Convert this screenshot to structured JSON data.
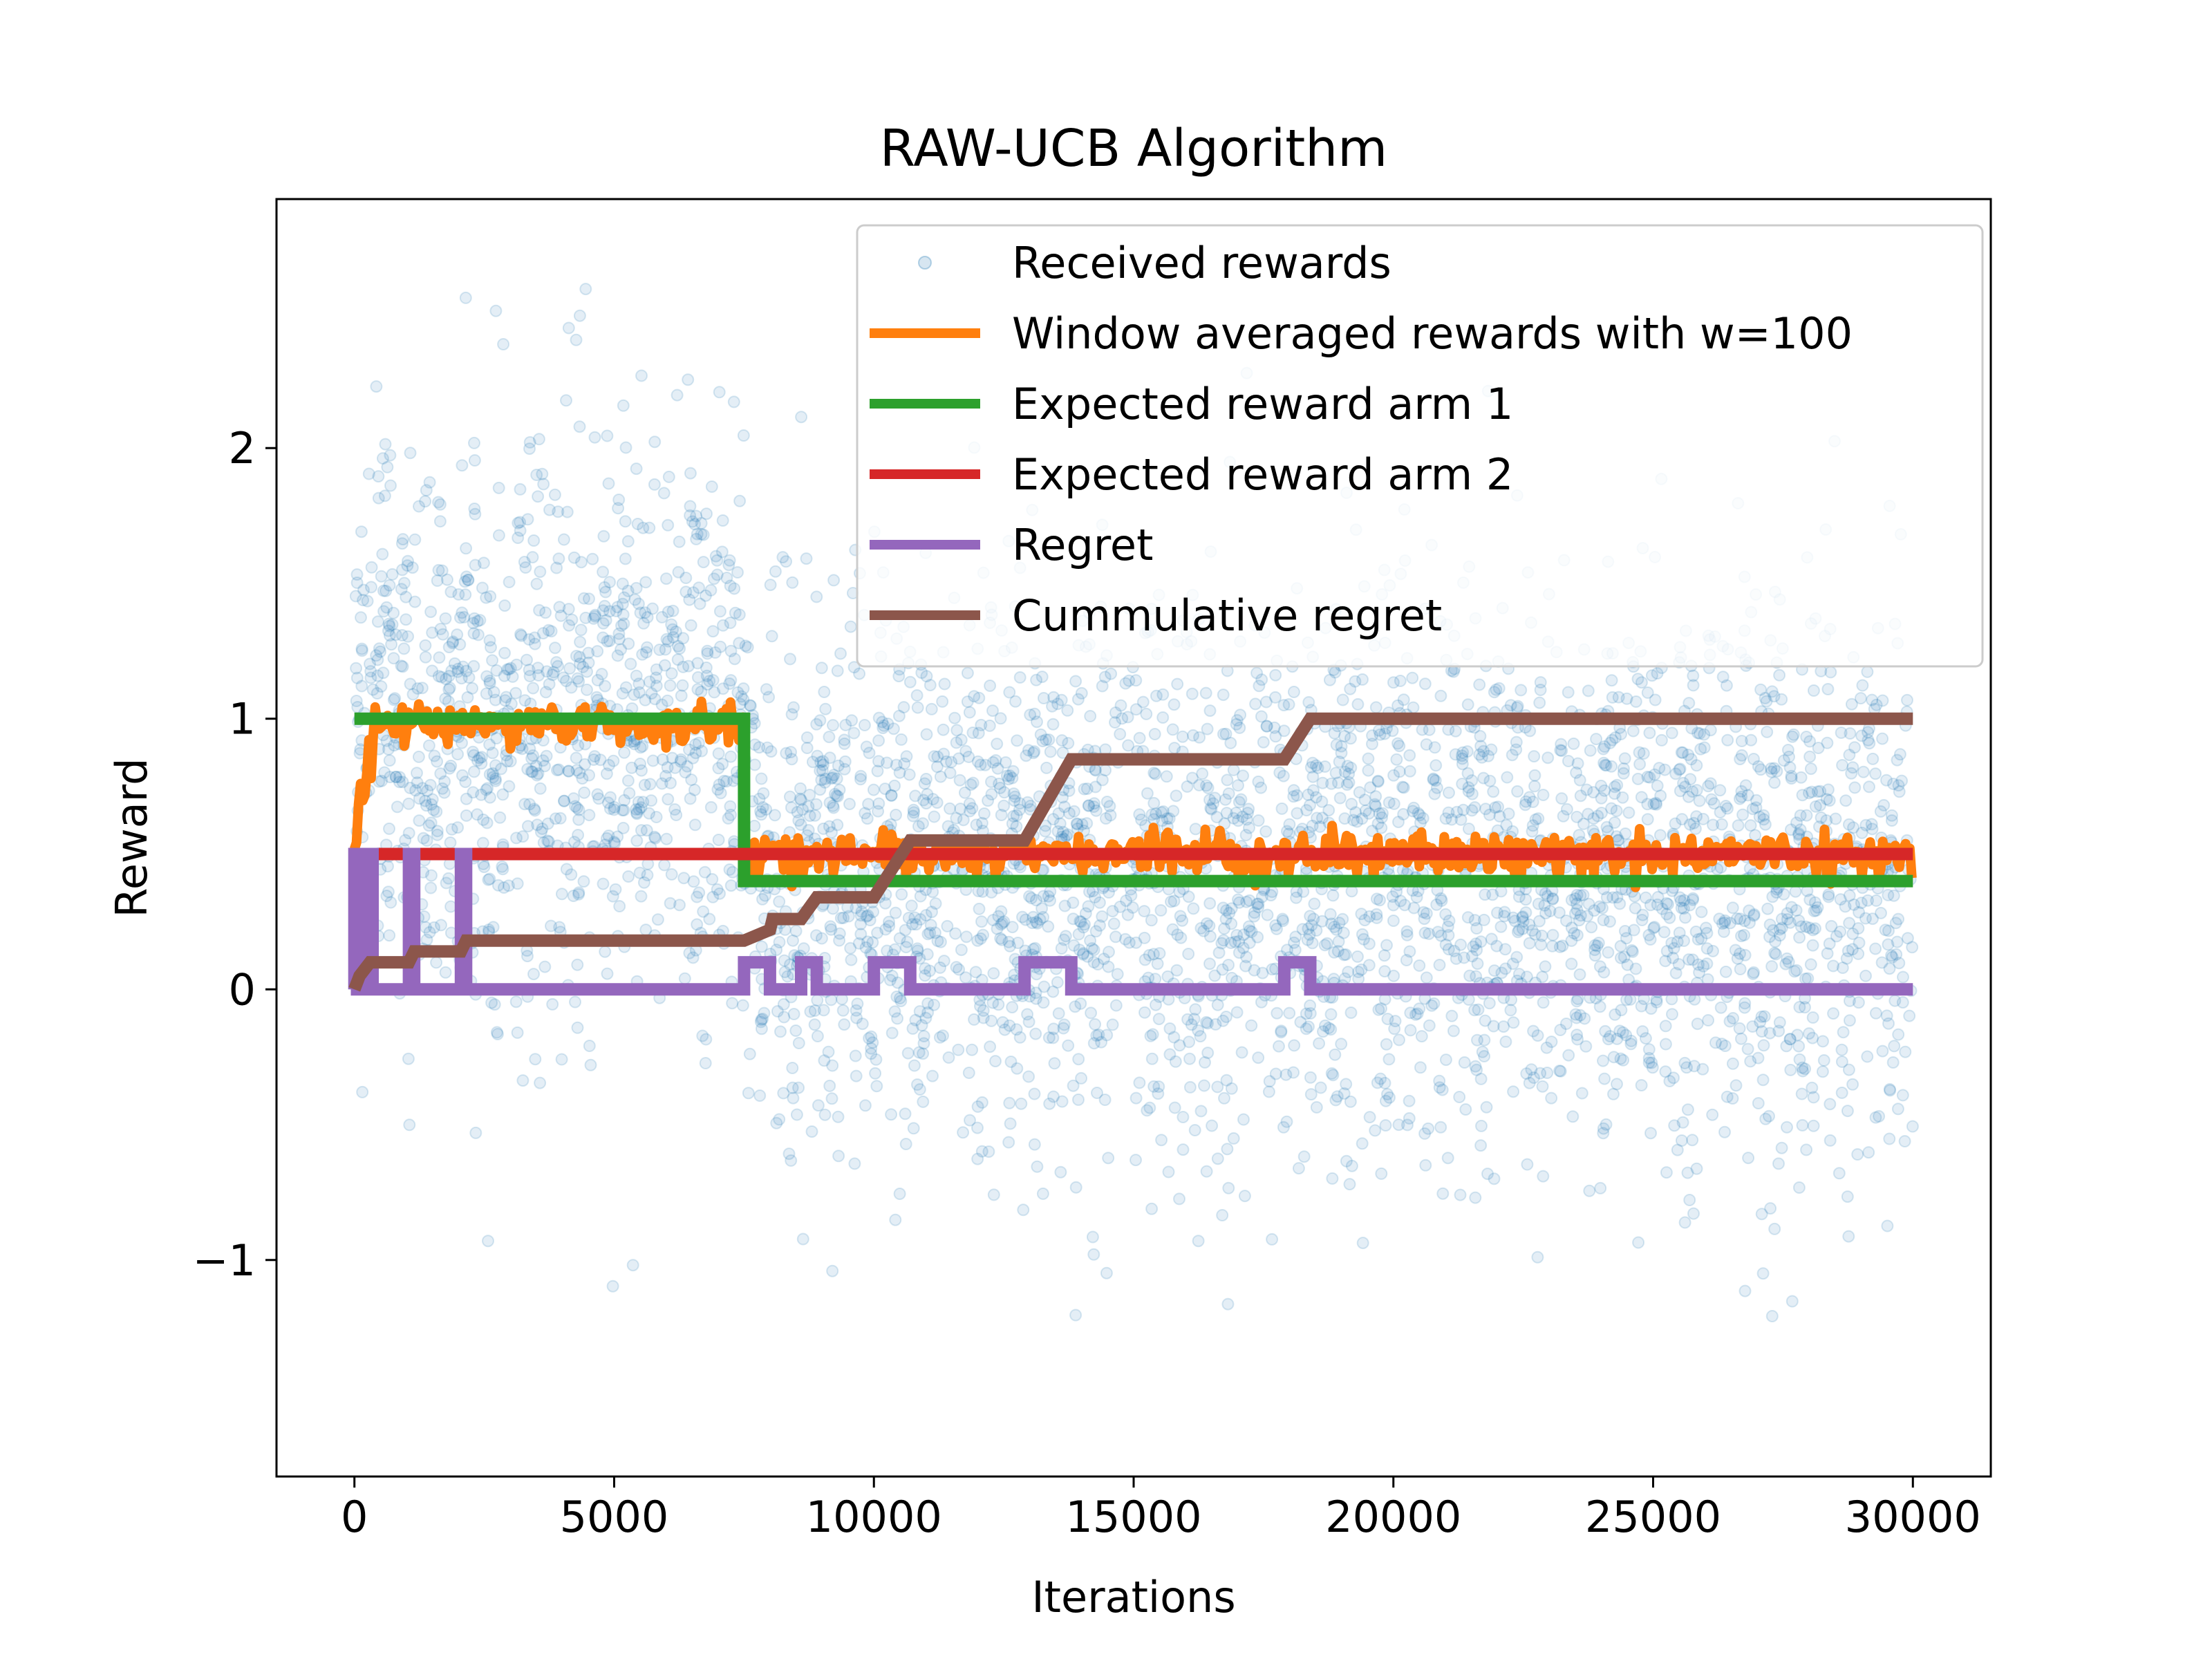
{
  "chart_data": {
    "type": "line",
    "title": "RAW-UCB Algorithm",
    "xlabel": "Iterations",
    "ylabel": "Reward",
    "xlim": [
      -1500,
      31500
    ],
    "ylim": [
      -1.8,
      2.92
    ],
    "xticks": [
      0,
      5000,
      10000,
      15000,
      20000,
      25000,
      30000
    ],
    "xtick_labels": [
      "0",
      "5000",
      "10000",
      "15000",
      "20000",
      "25000",
      "30000"
    ],
    "yticks": [
      -1,
      0,
      1,
      2
    ],
    "ytick_labels": [
      "−1",
      "0",
      "1",
      "2"
    ],
    "grid": false,
    "legend_position": "upper-right",
    "series": [
      {
        "name": "Received rewards",
        "kind": "scatter",
        "color": "#1f77b4",
        "alpha": 0.12,
        "n_points": 4000,
        "segments": [
          {
            "x_range": [
              0,
              7500
            ],
            "mean": 1.0,
            "std": 0.5
          },
          {
            "x_range": [
              7500,
              30000
            ],
            "mean": 0.4,
            "std": 0.5
          }
        ]
      },
      {
        "name": "Window averaged rewards with w=100",
        "kind": "line",
        "color": "#ff7f0e",
        "approx_levels": [
          {
            "x_range": [
              0,
              7500
            ],
            "level": 0.98
          },
          {
            "x_range": [
              7500,
              30000
            ],
            "level": 0.5
          }
        ]
      },
      {
        "name": "Expected reward arm 1",
        "kind": "line",
        "color": "#2ca02c",
        "points": [
          [
            0,
            1.0
          ],
          [
            7500,
            1.0
          ],
          [
            7500,
            0.4
          ],
          [
            30000,
            0.4
          ]
        ]
      },
      {
        "name": "Expected reward arm 2",
        "kind": "line",
        "color": "#d62728",
        "points": [
          [
            0,
            0.5
          ],
          [
            30000,
            0.5
          ]
        ]
      },
      {
        "name": "Regret",
        "kind": "line",
        "color": "#9467bd",
        "points": [
          [
            0,
            0
          ],
          [
            0,
            0.5
          ],
          [
            50,
            0.5
          ],
          [
            50,
            0
          ],
          [
            100,
            0
          ],
          [
            100,
            0.5
          ],
          [
            150,
            0.5
          ],
          [
            150,
            0
          ],
          [
            200,
            0
          ],
          [
            200,
            0.5
          ],
          [
            250,
            0.5
          ],
          [
            250,
            0
          ],
          [
            300,
            0
          ],
          [
            300,
            0.5
          ],
          [
            350,
            0.5
          ],
          [
            350,
            0
          ],
          [
            1050,
            0
          ],
          [
            1050,
            0.5
          ],
          [
            1150,
            0.5
          ],
          [
            1150,
            0
          ],
          [
            2050,
            0
          ],
          [
            2050,
            0.5
          ],
          [
            2150,
            0.5
          ],
          [
            2150,
            0
          ],
          [
            7500,
            0
          ],
          [
            7500,
            0.1
          ],
          [
            8000,
            0.1
          ],
          [
            8000,
            0
          ],
          [
            8600,
            0
          ],
          [
            8600,
            0.1
          ],
          [
            8900,
            0.1
          ],
          [
            8900,
            0
          ],
          [
            10000,
            0
          ],
          [
            10000,
            0.1
          ],
          [
            10700,
            0.1
          ],
          [
            10700,
            0
          ],
          [
            12900,
            0
          ],
          [
            12900,
            0.1
          ],
          [
            13800,
            0.1
          ],
          [
            13800,
            0
          ],
          [
            17900,
            0
          ],
          [
            17900,
            0.1
          ],
          [
            18400,
            0.1
          ],
          [
            18400,
            0
          ],
          [
            30000,
            0
          ]
        ]
      },
      {
        "name": "Cummulative regret",
        "kind": "line",
        "color": "#8c564b",
        "points": [
          [
            0,
            0
          ],
          [
            100,
            0.05
          ],
          [
            300,
            0.1
          ],
          [
            1050,
            0.1
          ],
          [
            1150,
            0.14
          ],
          [
            2050,
            0.14
          ],
          [
            2150,
            0.18
          ],
          [
            7500,
            0.18
          ],
          [
            8000,
            0.22
          ],
          [
            8050,
            0.26
          ],
          [
            8600,
            0.26
          ],
          [
            8900,
            0.34
          ],
          [
            10000,
            0.34
          ],
          [
            10700,
            0.55
          ],
          [
            12900,
            0.55
          ],
          [
            13800,
            0.85
          ],
          [
            17900,
            0.85
          ],
          [
            18400,
            1.0
          ],
          [
            30000,
            1.0
          ]
        ]
      }
    ]
  }
}
